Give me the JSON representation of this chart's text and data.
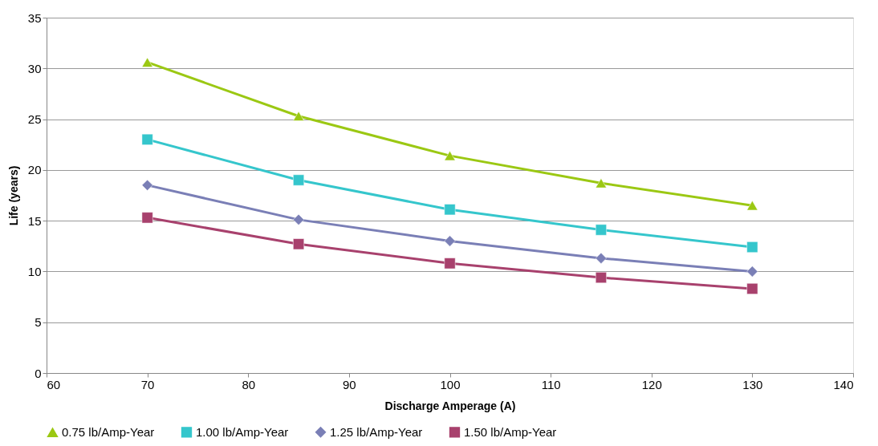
{
  "chart_data": {
    "type": "line",
    "xlabel": "Discharge Amperage (A)",
    "ylabel": "Life (years)",
    "x": [
      70,
      85,
      100,
      115,
      130
    ],
    "xlim": [
      60,
      140
    ],
    "xticks": [
      60,
      70,
      80,
      90,
      100,
      110,
      120,
      130,
      140
    ],
    "ylim": [
      0,
      35
    ],
    "yticks": [
      0,
      5,
      10,
      15,
      20,
      25,
      30,
      35
    ],
    "grid": "y",
    "legend": "bottom",
    "line_style": "solid",
    "series": [
      {
        "name": "0.75 lb/Amp-Year",
        "color": "#9bc813",
        "marker": "triangle",
        "values": [
          30.6,
          25.3,
          21.4,
          18.7,
          16.5
        ]
      },
      {
        "name": "1.00 lb/Amp-Year",
        "color": "#35c6cc",
        "marker": "square",
        "values": [
          23.0,
          19.0,
          16.1,
          14.1,
          12.4
        ]
      },
      {
        "name": "1.25 lb/Amp-Year",
        "color": "#7a7fb6",
        "marker": "diamond",
        "values": [
          18.5,
          15.1,
          13.0,
          11.3,
          10.0
        ]
      },
      {
        "name": "1.50 lb/Amp-Year",
        "color": "#a8416d",
        "marker": "square",
        "values": [
          15.3,
          12.7,
          10.8,
          9.4,
          8.3
        ]
      }
    ]
  }
}
